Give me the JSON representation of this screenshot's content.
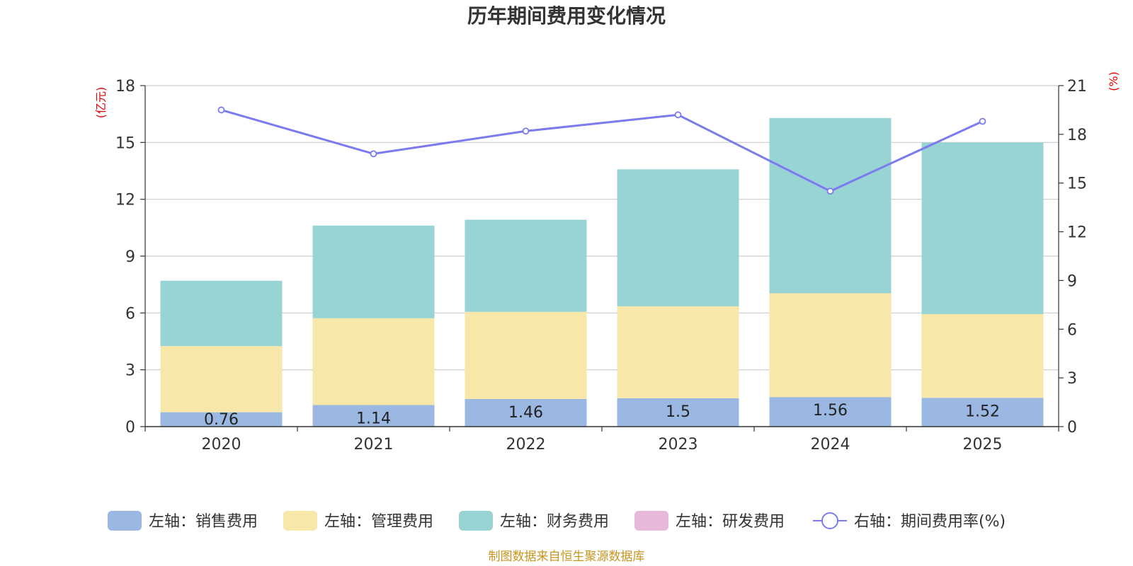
{
  "chart_data": {
    "type": "bar",
    "title": "历年期间费用变化情况",
    "categories": [
      "2020",
      "2021",
      "2022",
      "2023",
      "2024",
      "2025"
    ],
    "left_axis": {
      "unit": "(亿元)",
      "ylim": [
        0,
        18
      ],
      "ticks": [
        0,
        3,
        6,
        9,
        12,
        15,
        18
      ]
    },
    "right_axis": {
      "unit": "(%)",
      "ylim": [
        0,
        21
      ],
      "ticks": [
        0,
        3,
        6,
        9,
        12,
        15,
        18,
        21
      ]
    },
    "series": [
      {
        "name": "左轴：销售费用",
        "type": "bar",
        "axis": "left",
        "color": "#9bb8e2",
        "values": [
          0.76,
          1.14,
          1.46,
          1.5,
          1.56,
          1.52
        ],
        "labels": [
          "0.76",
          "1.14",
          "1.46",
          "1.5",
          "1.56",
          "1.52"
        ]
      },
      {
        "name": "左轴：管理费用",
        "type": "bar",
        "axis": "left",
        "color": "#f7e7a8",
        "values": [
          3.49,
          4.58,
          4.6,
          4.85,
          5.48,
          4.42
        ]
      },
      {
        "name": "左轴：财务费用",
        "type": "bar",
        "axis": "left",
        "color": "#98d4d4",
        "values": [
          3.45,
          4.89,
          4.86,
          7.23,
          9.25,
          9.06
        ]
      },
      {
        "name": "左轴：研发费用",
        "type": "bar",
        "axis": "left",
        "color": "#e8b8d8",
        "values": [
          0,
          0,
          0,
          0,
          0,
          0
        ]
      },
      {
        "name": "右轴：期间费用率(%)",
        "type": "line",
        "axis": "right",
        "color": "#7b7bef",
        "values": [
          19.5,
          16.8,
          18.2,
          19.2,
          14.5,
          18.8
        ]
      }
    ],
    "source": "制图数据来自恒生聚源数据库"
  }
}
